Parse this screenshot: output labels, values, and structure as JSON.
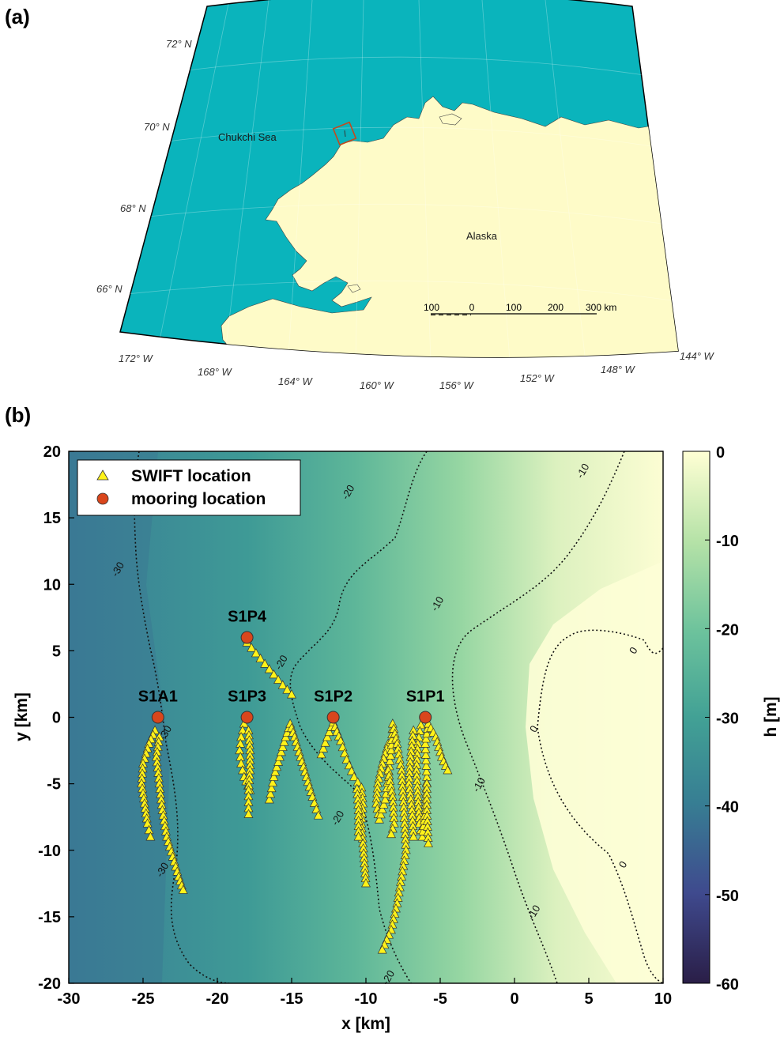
{
  "panel_a": {
    "label": "(a)",
    "lat_labels": [
      "72° N",
      "70° N",
      "68° N",
      "66° N"
    ],
    "lon_labels": [
      "172° W",
      "168° W",
      "164° W",
      "160° W",
      "156° W",
      "152° W",
      "148° W",
      "144° W"
    ],
    "place_labels": {
      "sea": "Chukchi Sea",
      "land": "Alaska"
    },
    "scale_bar": {
      "ticks": [
        "100",
        "0",
        "100",
        "200",
        "300 km"
      ]
    },
    "colors": {
      "ocean": "#0AB4BC",
      "land": "#FEFBC8",
      "box": "#C24A1E"
    }
  },
  "panel_b": {
    "label": "(b)",
    "legend": {
      "swift": "SWIFT location",
      "mooring": "mooring location"
    },
    "stations": [
      {
        "name": "S1A1",
        "x": -24,
        "y": 0
      },
      {
        "name": "S1P3",
        "x": -18,
        "y": 0
      },
      {
        "name": "S1P4",
        "x": -18,
        "y": 6
      },
      {
        "name": "S1P2",
        "x": -12.2,
        "y": 0
      },
      {
        "name": "S1P1",
        "x": -6,
        "y": 0
      }
    ],
    "contour_labels": [
      {
        "text": "-30",
        "x": -26.5,
        "y": 11
      },
      {
        "text": "-30",
        "x": -23.3,
        "y": -1.3
      },
      {
        "text": "-30",
        "x": -23.5,
        "y": -11.6
      },
      {
        "text": "-20",
        "x": -11,
        "y": 16.8
      },
      {
        "text": "-20",
        "x": -15.5,
        "y": 4
      },
      {
        "text": "-20",
        "x": -11.7,
        "y": -7.7
      },
      {
        "text": "-20",
        "x": -8.3,
        "y": -19.7
      },
      {
        "text": "-10",
        "x": 4.8,
        "y": 18.4
      },
      {
        "text": "-10",
        "x": -5,
        "y": 8.4
      },
      {
        "text": "-10",
        "x": -2.2,
        "y": -5.2
      },
      {
        "text": "-10",
        "x": 1.5,
        "y": -14.8
      },
      {
        "text": "0",
        "x": 8.2,
        "y": 4.9
      },
      {
        "text": "0",
        "x": 1.5,
        "y": -1
      },
      {
        "text": "0",
        "x": 7.5,
        "y": -11.2
      }
    ],
    "x_axis": {
      "label": "x [km]",
      "ticks": [
        -30,
        -25,
        -20,
        -15,
        -10,
        -5,
        0,
        5,
        10
      ],
      "range": [
        -30,
        10
      ]
    },
    "y_axis": {
      "label": "y [km]",
      "ticks": [
        20,
        15,
        10,
        5,
        0,
        -5,
        -10,
        -15,
        -20
      ],
      "range": [
        -20,
        20
      ]
    },
    "colorbar": {
      "label": "h [m]",
      "ticks": [
        0,
        -10,
        -20,
        -30,
        -40,
        -50,
        -60
      ],
      "range": [
        -60,
        0
      ]
    },
    "colors": {
      "swift": "#FFF21A",
      "mooring": "#D9461C"
    }
  }
}
